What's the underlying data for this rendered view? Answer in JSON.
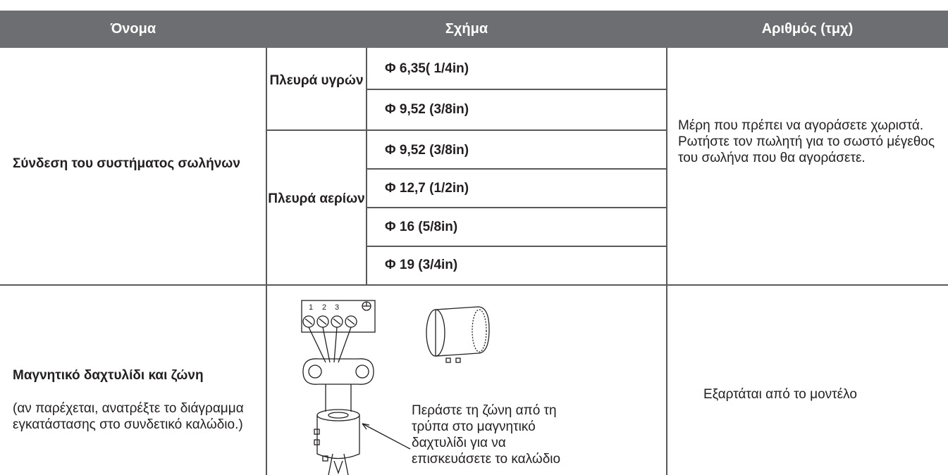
{
  "header": {
    "name": "Όνομα",
    "shape": "Σχήμα",
    "quantity": "Αριθμός (τμχ)"
  },
  "rows": [
    {
      "name": "Σύνδεση του συστήματος σωλήνων",
      "groups": [
        {
          "side": "Πλευρά υγρών",
          "sizes": [
            "Φ 6,35( 1/4in)",
            "Φ 9,52 (3/8in)"
          ]
        },
        {
          "side": "Πλευρά αερίων",
          "sizes": [
            "Φ 9,52 (3/8in)",
            "Φ 12,7 (1/2in)",
            "Φ 16 (5/8in)",
            "Φ 19 (3/4in)"
          ]
        }
      ],
      "quantity": "Μέρη που πρέπει να αγοράσετε χωριστά. Ρωτήστε τον πωλητή για το σωστό μέγεθος του σωλήνα που θα αγοράσετε."
    },
    {
      "name": "Μαγνητικό δαχτυλίδι και ζώνη",
      "note": "(αν παρέχεται, ανατρέξτε το διάγραμμα εγκατάστασης στο συνδετικό καλώδιο.)",
      "terminal_labels": [
        "1",
        "2",
        "3"
      ],
      "caption": "Περάστε τη ζώνη από τη τρύπα στο μαγνητικό δαχτυλίδι για να επισκευάσετε το καλώδιο",
      "quantity": "Εξαρτάται από το μοντέλο"
    }
  ]
}
